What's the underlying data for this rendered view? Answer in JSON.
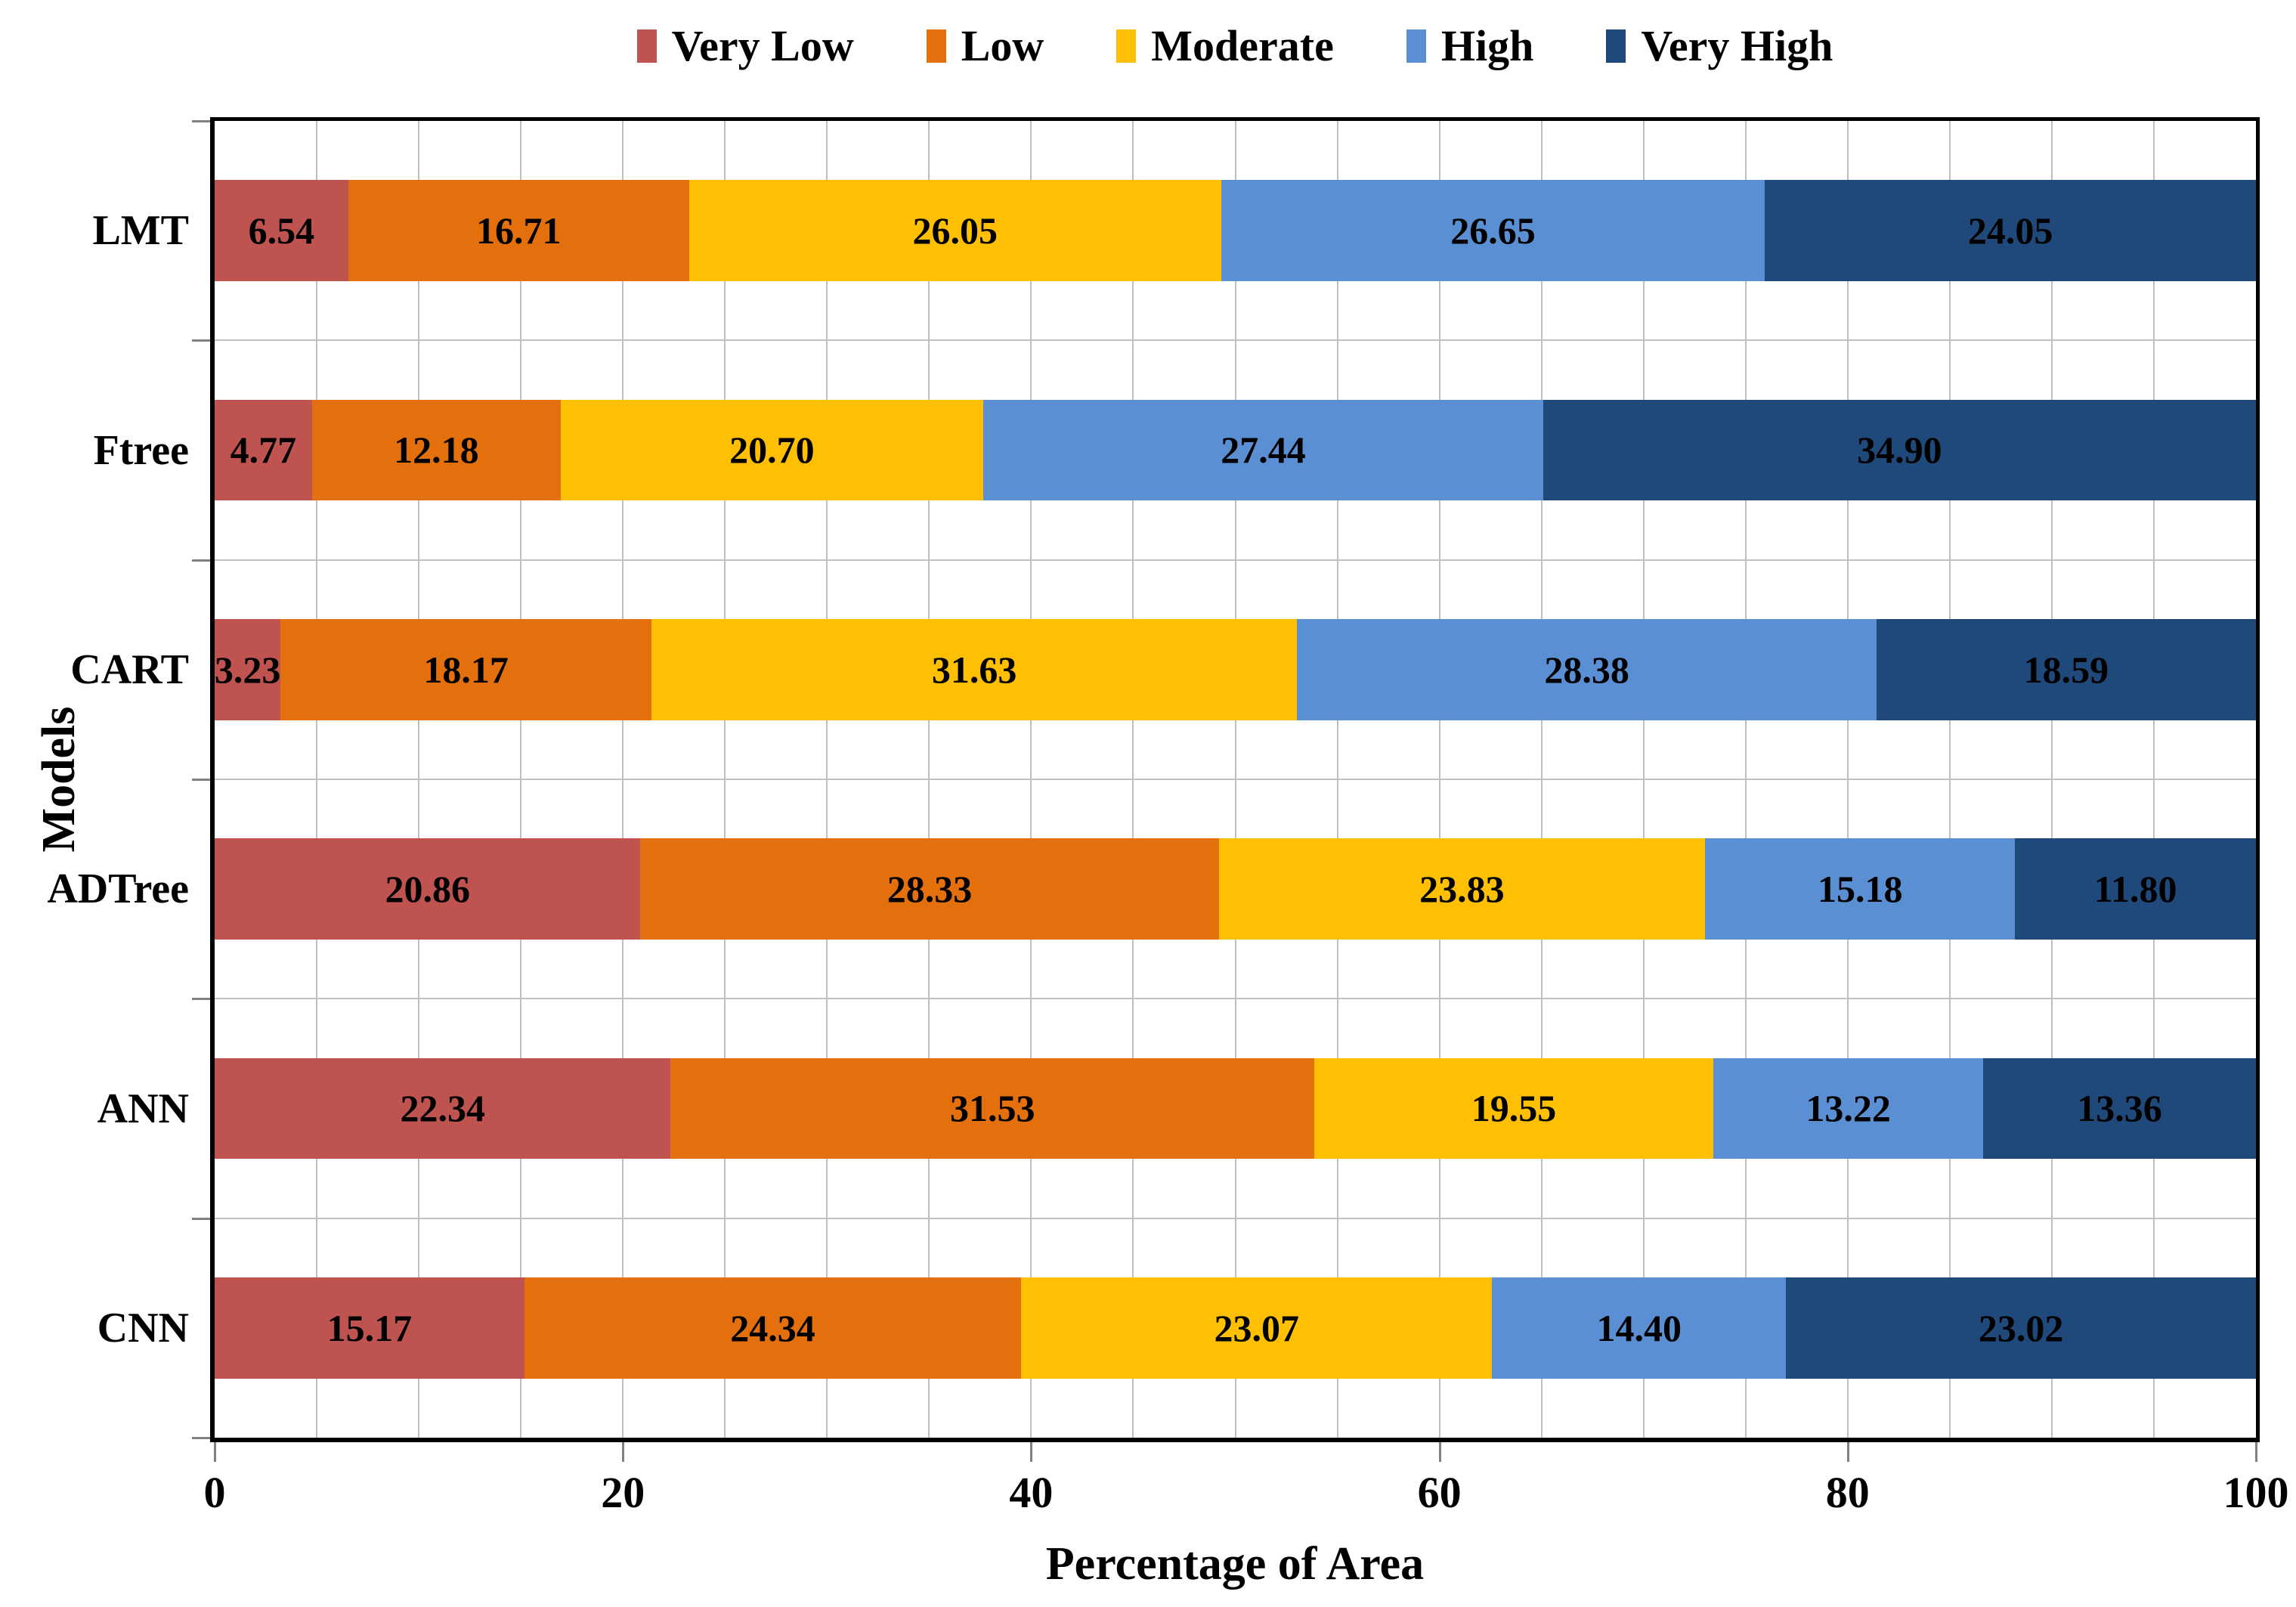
{
  "chart_data": {
    "type": "bar",
    "orientation": "horizontal",
    "stacked": true,
    "title": "",
    "xlabel": "Percentage of Area",
    "ylabel": "Models",
    "categories": [
      "LMT",
      "Ftree",
      "CART",
      "ADTree",
      "ANN",
      "CNN"
    ],
    "series": [
      {
        "name": "Very Low",
        "color": "#BE5350",
        "values": [
          6.54,
          4.77,
          3.23,
          20.86,
          22.34,
          15.17
        ]
      },
      {
        "name": "Low",
        "color": "#E4700D",
        "values": [
          16.71,
          12.18,
          18.17,
          28.33,
          31.53,
          24.34
        ]
      },
      {
        "name": "Moderate",
        "color": "#FFC003",
        "values": [
          26.05,
          20.7,
          31.63,
          23.83,
          19.55,
          23.07
        ]
      },
      {
        "name": "High",
        "color": "#5B8FD3",
        "values": [
          26.65,
          27.44,
          28.38,
          15.18,
          13.22,
          14.4
        ]
      },
      {
        "name": "Very High",
        "color": "#20497B",
        "values": [
          24.05,
          34.9,
          18.59,
          11.8,
          13.36,
          23.02
        ]
      }
    ],
    "xlim": [
      0,
      100
    ],
    "x_ticks": [
      "0",
      "20",
      "40",
      "60",
      "80",
      "100"
    ],
    "x_tick_values": [
      0,
      20,
      40,
      60,
      80,
      100
    ],
    "minor_grid_step": 5,
    "grid": true,
    "legend_position": "top",
    "value_label_decimals": 2,
    "colors": {
      "grid": "#BFBFBF",
      "tick": "#808080",
      "axis": "#000000",
      "value_label": "#000000",
      "background": "#FFFFFF"
    }
  }
}
